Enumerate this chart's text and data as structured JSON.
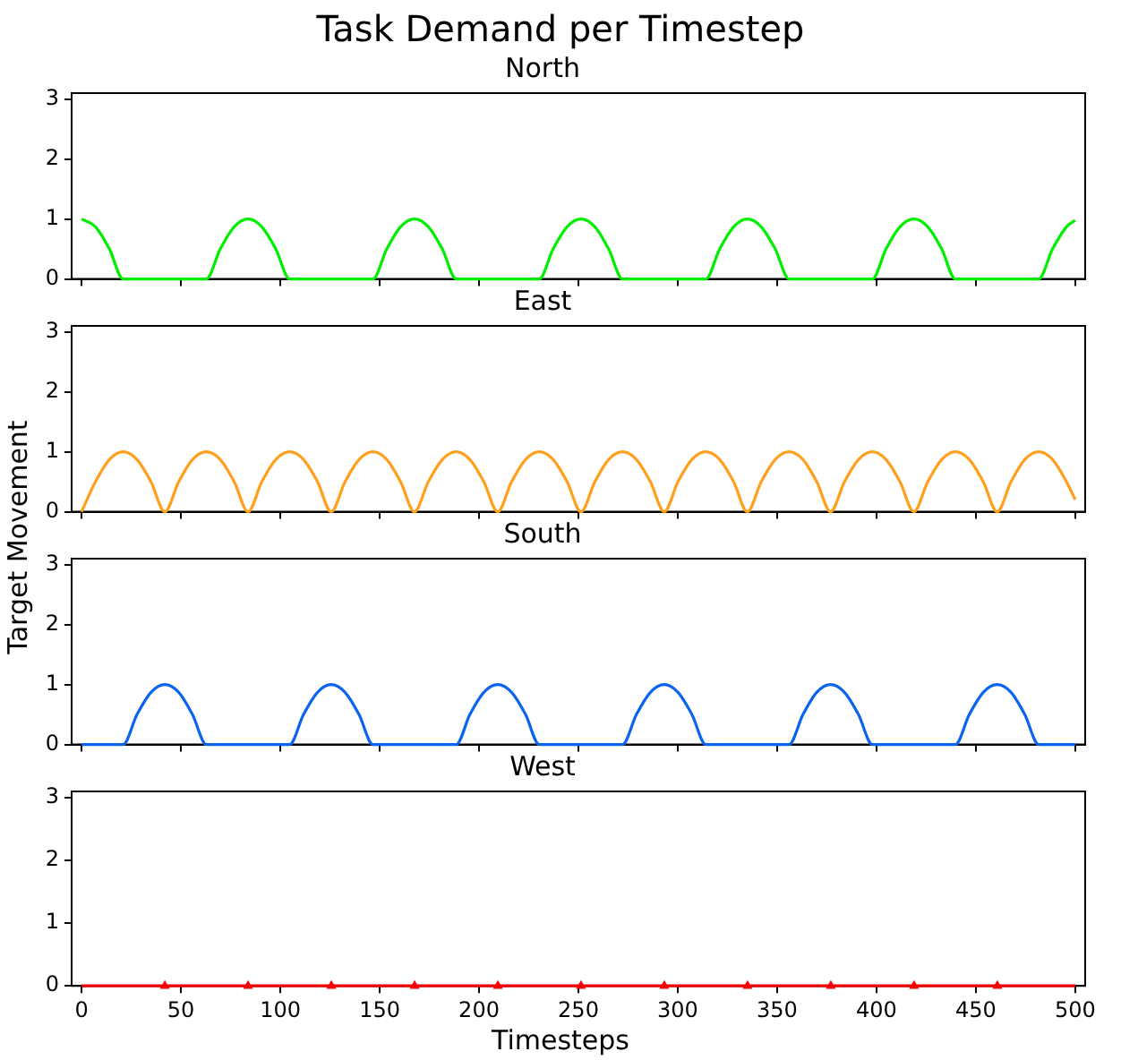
{
  "chart_data": [
    {
      "type": "line",
      "title": "Task Demand per Timestep",
      "subtitle": "North",
      "x": [
        0,
        7,
        14,
        20.9,
        27.9,
        34.9,
        41.9,
        48.9,
        55.8,
        62.8,
        69.8,
        76.8,
        83.8,
        90.7,
        97.7,
        104.7,
        111.7,
        118.7,
        125.6,
        132.6,
        139.6,
        146.6,
        153.6,
        160.5,
        167.5,
        174.5,
        181.5,
        188.5,
        195.4,
        202.4,
        209.4,
        216.4,
        223.4,
        230.3,
        237.3,
        244.3,
        251.3,
        258.3,
        265.2,
        272.2,
        279.2,
        286.2,
        293.2,
        300.1,
        307.1,
        314.1,
        321.1,
        328.1,
        335,
        342,
        349,
        356,
        363,
        369.9,
        376.9,
        383.9,
        390.9,
        397.9,
        404.8,
        411.8,
        418.8,
        425.8,
        432.8,
        439.7,
        446.7,
        453.7,
        460.7,
        467.7,
        474.6,
        481.6,
        488.6,
        495.6,
        500
      ],
      "series": [
        {
          "color": "#00ee00",
          "values": [
            1,
            0.87,
            0.5,
            0,
            0,
            0,
            0,
            0,
            0,
            0,
            0.5,
            0.87,
            1,
            0.87,
            0.5,
            0,
            0,
            0,
            0,
            0,
            0,
            0,
            0.5,
            0.87,
            1,
            0.87,
            0.5,
            0,
            0,
            0,
            0,
            0,
            0,
            0,
            0.5,
            0.87,
            1,
            0.87,
            0.5,
            0,
            0,
            0,
            0,
            0,
            0,
            0,
            0.5,
            0.87,
            1,
            0.87,
            0.5,
            0,
            0,
            0,
            0,
            0,
            0,
            0,
            0.5,
            0.87,
            1,
            0.87,
            0.5,
            0,
            0,
            0,
            0,
            0,
            0,
            0,
            0.5,
            0.87,
            0.98
          ]
        }
      ],
      "xlim": [
        -5,
        505
      ],
      "xticks": [
        0,
        50,
        100,
        150,
        200,
        250,
        300,
        350,
        400,
        450,
        500
      ],
      "ylim": [
        0,
        3.1
      ],
      "yticks": [
        0,
        1,
        2,
        3
      ],
      "tick_labels": "y",
      "grid": false,
      "legend": false,
      "marker": "none",
      "line_style": "solid"
    },
    {
      "type": "line",
      "title": "East",
      "ylabel": "Target Movement",
      "x": [
        0,
        7,
        14,
        20.9,
        27.9,
        34.9,
        41.9,
        48.9,
        55.8,
        62.8,
        69.8,
        76.8,
        83.8,
        90.7,
        97.7,
        104.7,
        111.7,
        118.7,
        125.6,
        132.6,
        139.6,
        146.6,
        153.6,
        160.5,
        167.5,
        174.5,
        181.5,
        188.5,
        195.4,
        202.4,
        209.4,
        216.4,
        223.4,
        230.3,
        237.3,
        244.3,
        251.3,
        258.3,
        265.2,
        272.2,
        279.2,
        286.2,
        293.2,
        300.1,
        307.1,
        314.1,
        321.1,
        328.1,
        335,
        342,
        349,
        356,
        363,
        369.9,
        376.9,
        383.9,
        390.9,
        397.9,
        404.8,
        411.8,
        418.8,
        425.8,
        432.8,
        439.7,
        446.7,
        453.7,
        460.7,
        467.7,
        474.6,
        481.6,
        488.6,
        495.6,
        500
      ],
      "series": [
        {
          "color": "#ff9f1c",
          "values": [
            0,
            0.5,
            0.87,
            1,
            0.87,
            0.5,
            0,
            0.5,
            0.87,
            1,
            0.87,
            0.5,
            0,
            0.5,
            0.87,
            1,
            0.87,
            0.5,
            0,
            0.5,
            0.87,
            1,
            0.87,
            0.5,
            0,
            0.5,
            0.87,
            1,
            0.87,
            0.5,
            0,
            0.5,
            0.87,
            1,
            0.87,
            0.5,
            0,
            0.5,
            0.87,
            1,
            0.87,
            0.5,
            0,
            0.5,
            0.87,
            1,
            0.87,
            0.5,
            0,
            0.5,
            0.87,
            1,
            0.87,
            0.5,
            0,
            0.5,
            0.87,
            1,
            0.87,
            0.5,
            0,
            0.5,
            0.87,
            1,
            0.87,
            0.5,
            0,
            0.5,
            0.87,
            1,
            0.87,
            0.5,
            0.2
          ]
        }
      ],
      "xlim": [
        -5,
        505
      ],
      "xticks": [
        0,
        50,
        100,
        150,
        200,
        250,
        300,
        350,
        400,
        450,
        500
      ],
      "ylim": [
        0,
        3.1
      ],
      "yticks": [
        0,
        1,
        2,
        3
      ],
      "tick_labels": "y",
      "grid": false,
      "legend": false,
      "marker": "none",
      "line_style": "solid"
    },
    {
      "type": "line",
      "title": "South",
      "x": [
        0,
        7,
        14,
        20.9,
        27.9,
        34.9,
        41.9,
        48.9,
        55.8,
        62.8,
        69.8,
        76.8,
        83.8,
        90.7,
        97.7,
        104.7,
        111.7,
        118.7,
        125.6,
        132.6,
        139.6,
        146.6,
        153.6,
        160.5,
        167.5,
        174.5,
        181.5,
        188.5,
        195.4,
        202.4,
        209.4,
        216.4,
        223.4,
        230.3,
        237.3,
        244.3,
        251.3,
        258.3,
        265.2,
        272.2,
        279.2,
        286.2,
        293.2,
        300.1,
        307.1,
        314.1,
        321.1,
        328.1,
        335,
        342,
        349,
        356,
        363,
        369.9,
        376.9,
        383.9,
        390.9,
        397.9,
        404.8,
        411.8,
        418.8,
        425.8,
        432.8,
        439.7,
        446.7,
        453.7,
        460.7,
        467.7,
        474.6,
        481.6,
        488.6,
        495.6,
        500
      ],
      "series": [
        {
          "color": "#0a64f0",
          "values": [
            0,
            0,
            0,
            0,
            0.5,
            0.87,
            1,
            0.87,
            0.5,
            0,
            0,
            0,
            0,
            0,
            0,
            0,
            0.5,
            0.87,
            1,
            0.87,
            0.5,
            0,
            0,
            0,
            0,
            0,
            0,
            0,
            0.5,
            0.87,
            1,
            0.87,
            0.5,
            0,
            0,
            0,
            0,
            0,
            0,
            0,
            0.5,
            0.87,
            1,
            0.87,
            0.5,
            0,
            0,
            0,
            0,
            0,
            0,
            0,
            0.5,
            0.87,
            1,
            0.87,
            0.5,
            0,
            0,
            0,
            0,
            0,
            0,
            0,
            0.5,
            0.87,
            1,
            0.87,
            0.5,
            0,
            0,
            0,
            0
          ]
        }
      ],
      "xlim": [
        -5,
        505
      ],
      "xticks": [
        0,
        50,
        100,
        150,
        200,
        250,
        300,
        350,
        400,
        450,
        500
      ],
      "ylim": [
        0,
        3.1
      ],
      "yticks": [
        0,
        1,
        2,
        3
      ],
      "tick_labels": "y",
      "grid": false,
      "legend": false,
      "marker": "none",
      "line_style": "solid"
    },
    {
      "type": "line",
      "title": "West",
      "xlabel": "Timesteps",
      "series": [
        {
          "color": "#ee0000",
          "x": [
            0,
            500
          ],
          "values": [
            0,
            0
          ]
        },
        {
          "type": "scatter",
          "marker": "triangle",
          "color": "#ff0000",
          "x": [
            41.9,
            83.8,
            125.7,
            167.6,
            209.5,
            251.3,
            293.2,
            335.1,
            377,
            418.9,
            460.8
          ],
          "values": [
            0,
            0,
            0,
            0,
            0,
            0,
            0,
            0,
            0,
            0,
            0
          ]
        }
      ],
      "xlim": [
        -5,
        505
      ],
      "xticks": [
        0,
        50,
        100,
        150,
        200,
        250,
        300,
        350,
        400,
        450,
        500
      ],
      "ylim": [
        0,
        3.1
      ],
      "yticks": [
        0,
        1,
        2,
        3
      ],
      "grid": false,
      "legend": false,
      "marker": "none",
      "line_style": "solid"
    }
  ]
}
